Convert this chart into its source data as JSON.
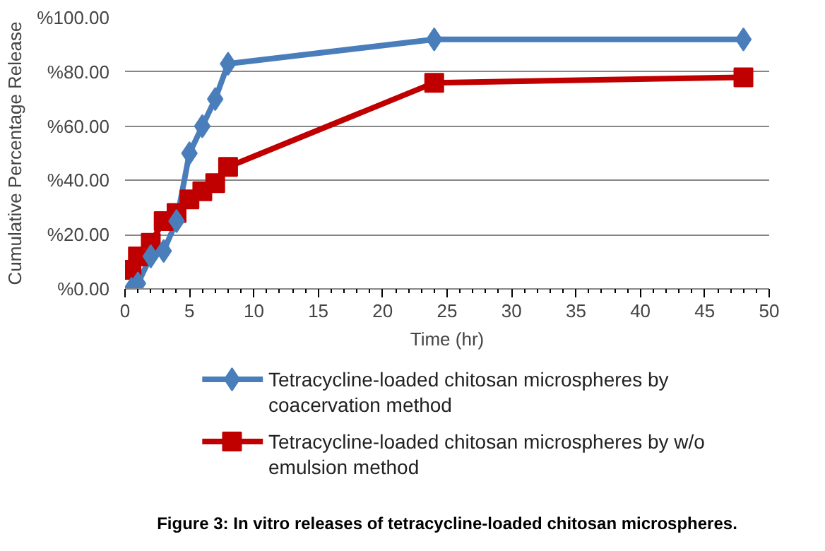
{
  "chart_data": {
    "type": "line",
    "xlabel": "Time (hr)",
    "ylabel": "Cumulative Percentage Release",
    "xlim": [
      0,
      50
    ],
    "xticks": [
      0,
      5,
      10,
      15,
      20,
      25,
      30,
      35,
      40,
      45,
      50
    ],
    "ylim": [
      0,
      100
    ],
    "yticks": [
      {
        "value": 0,
        "label": "%0.00"
      },
      {
        "value": 20,
        "label": "%20.00"
      },
      {
        "value": 40,
        "label": "%40.00"
      },
      {
        "value": 60,
        "label": "%60.00"
      },
      {
        "value": 80,
        "label": "%80.00"
      },
      {
        "value": 100,
        "label": "%100.00"
      }
    ],
    "grid": "y",
    "legend": "bottom",
    "series": [
      {
        "name": "Tetracycline-loaded chitosan microspheres by coacervation method",
        "color": "#4a7ebb",
        "marker": "diamond",
        "x": [
          0.5,
          1,
          2,
          3,
          4,
          5,
          6,
          7,
          8,
          24,
          48
        ],
        "values": [
          0,
          2,
          12,
          14,
          25,
          50,
          60,
          70,
          83,
          92,
          92
        ]
      },
      {
        "name": "Tetracycline-loaded chitosan microspheres by w/o emulsion method",
        "color": "#c00000",
        "marker": "square",
        "x": [
          0.5,
          1,
          2,
          3,
          4,
          5,
          6,
          7,
          8,
          24,
          48
        ],
        "values": [
          7,
          12,
          17,
          25,
          28,
          33,
          36,
          39,
          45,
          76,
          78
        ]
      }
    ],
    "annotations": [
      "Figure 3: In vitro releases of tetracycline-loaded chitosan microspheres."
    ]
  }
}
